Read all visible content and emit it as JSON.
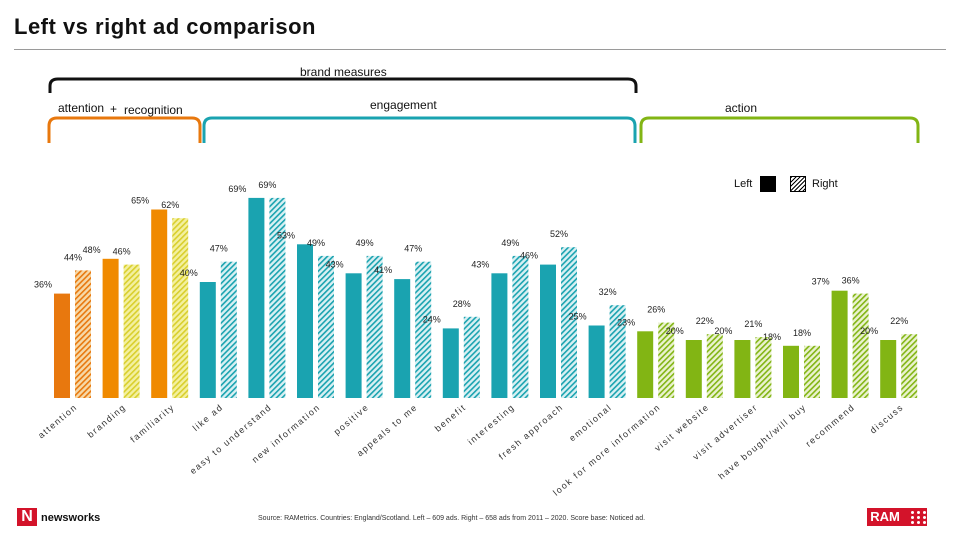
{
  "title": "Left vs right ad comparison",
  "groups": {
    "brand_measures": "brand measures",
    "attention": "attention",
    "plus": "+",
    "recognition": "recognition",
    "engagement": "engagement",
    "action": "action"
  },
  "legend": {
    "left": "Left",
    "right": "Right"
  },
  "source": "Source: RAMetrics. Countries: England/Scotland. Left – 609 ads. Right – 658 ads from 2011 – 2020. Score base: Noticed ad.",
  "logos": {
    "newsworks": "newsworks",
    "newsworks_mark": "N",
    "ram": "RAM"
  },
  "colors": {
    "attention": "#e8780e",
    "attention_right": "#f2c57e",
    "recognition": "#f08a00",
    "recognition_right": "#e9e36a",
    "engagement": "#1aa3b0",
    "engagement_right": "#9fd6dd",
    "action": "#82b514",
    "action_right": "#c7dc8a"
  },
  "chart_data": {
    "type": "bar",
    "ylim": [
      0,
      75
    ],
    "categories": [
      "attention",
      "branding",
      "familiarity",
      "like ad",
      "easy to understand",
      "new information",
      "positive",
      "appeals to me",
      "benefit",
      "interesting",
      "fresh approach",
      "emotional",
      "look for more information",
      "visit website",
      "visit advertiser",
      "have bought/will buy",
      "recommend",
      "discuss"
    ],
    "groups": [
      "attention",
      "recognition",
      "recognition",
      "engagement",
      "engagement",
      "engagement",
      "engagement",
      "engagement",
      "engagement",
      "engagement",
      "engagement",
      "engagement",
      "action",
      "action",
      "action",
      "action",
      "action",
      "action"
    ],
    "series": [
      {
        "name": "Left",
        "values": [
          36,
          48,
          65,
          40,
          69,
          53,
          43,
          41,
          24,
          43,
          46,
          25,
          23,
          20,
          20,
          18,
          37,
          20
        ],
        "labels": [
          "36%",
          "48%",
          "65%",
          "40%",
          "69%",
          "53%",
          "43%",
          "41%",
          "24%",
          "43%",
          "46%",
          "25%",
          "23%",
          "20%",
          "20%",
          "18%",
          "37%",
          "20%"
        ]
      },
      {
        "name": "Right",
        "values": [
          44,
          46,
          62,
          47,
          69,
          49,
          49,
          47,
          28,
          49,
          52,
          32,
          26,
          22,
          21,
          18,
          36,
          22
        ],
        "labels": [
          "44%",
          "46%",
          "62%",
          "47%",
          "69%",
          "49%",
          "49%",
          "47%",
          "28%",
          "49%",
          "52%",
          "32%",
          "26%",
          "22%",
          "21%",
          "18%",
          "36%",
          "22%"
        ]
      }
    ]
  }
}
